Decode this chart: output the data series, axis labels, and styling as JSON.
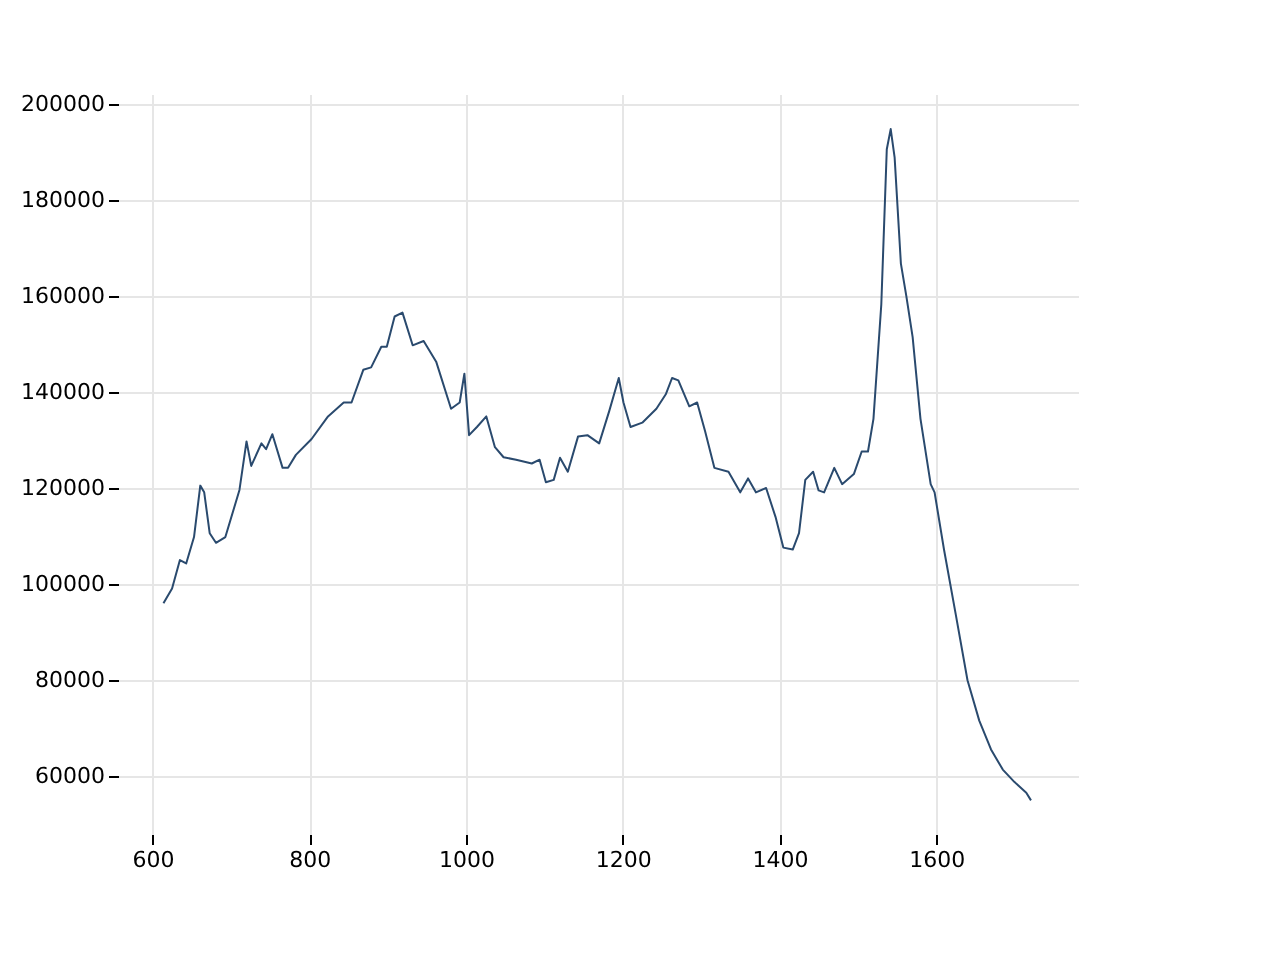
{
  "chart_data": {
    "type": "line",
    "xlim": [
      556,
      1781
    ],
    "ylim": [
      48000,
      202000
    ],
    "xticks": [
      600,
      800,
      1000,
      1200,
      1400,
      1600
    ],
    "yticks": [
      60000,
      80000,
      100000,
      120000,
      140000,
      160000,
      180000,
      200000
    ],
    "grid": true,
    "marker": "none",
    "line_style": "solid",
    "x": [
      614,
      625,
      635,
      643,
      653,
      661,
      666,
      673,
      681,
      693,
      711,
      720,
      726,
      739,
      745,
      753,
      766,
      773,
      783,
      803,
      824,
      844,
      854,
      869,
      879,
      892,
      899,
      909,
      919,
      932,
      946,
      962,
      981,
      992,
      998,
      1004,
      1014,
      1026,
      1037,
      1048,
      1064,
      1084,
      1094,
      1102,
      1112,
      1120,
      1130,
      1143,
      1155,
      1170,
      1183,
      1195,
      1201,
      1210,
      1225,
      1243,
      1255,
      1263,
      1271,
      1285,
      1295,
      1305,
      1317,
      1335,
      1350,
      1360,
      1370,
      1383,
      1395,
      1405,
      1417,
      1425,
      1433,
      1443,
      1450,
      1457,
      1470,
      1480,
      1495,
      1505,
      1513,
      1520,
      1530,
      1537,
      1542,
      1547,
      1555,
      1562,
      1570,
      1580,
      1593,
      1598,
      1610,
      1625,
      1640,
      1655,
      1670,
      1685,
      1700,
      1715,
      1721
    ],
    "series": [
      {
        "color": "#2a4a6e",
        "values": [
          96000,
          99100,
          105000,
          104300,
          109800,
          120500,
          119100,
          110600,
          108600,
          109800,
          119600,
          129700,
          124600,
          129300,
          128100,
          131200,
          124200,
          124200,
          126900,
          130200,
          134900,
          137800,
          137800,
          144600,
          145100,
          149400,
          149400,
          155700,
          156500,
          149700,
          150600,
          146300,
          136500,
          137800,
          143800,
          131000,
          132700,
          134900,
          128500,
          126400,
          125900,
          125100,
          125900,
          121200,
          121700,
          126300,
          123400,
          130700,
          131000,
          129300,
          136100,
          142900,
          137800,
          132700,
          133600,
          136500,
          139500,
          142900,
          142400,
          137000,
          137800,
          131900,
          124200,
          123400,
          119100,
          122000,
          119100,
          120000,
          114000,
          107600,
          107200,
          110600,
          121700,
          123400,
          119500,
          119100,
          124200,
          120800,
          122900,
          127600,
          127600,
          134400,
          158200,
          190500,
          194700,
          188800,
          166700,
          159900,
          151400,
          134400,
          120800,
          119100,
          107200,
          93700,
          80000,
          71600,
          65600,
          61400,
          58800,
          56600,
          55000
        ]
      }
    ]
  }
}
